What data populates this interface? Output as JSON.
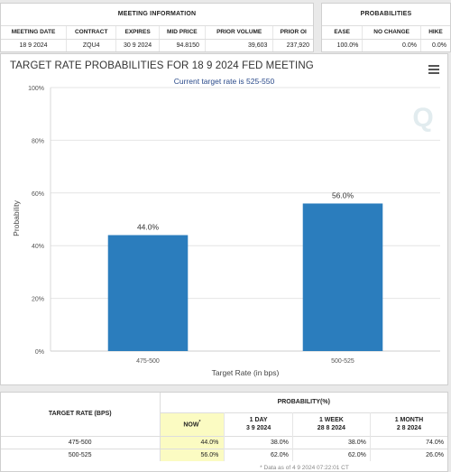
{
  "meeting_info": {
    "title": "MEETING INFORMATION",
    "headers": [
      "MEETING DATE",
      "CONTRACT",
      "EXPIRES",
      "MID PRICE",
      "PRIOR VOLUME",
      "PRIOR OI"
    ],
    "values": [
      "18 9 2024",
      "ZQU4",
      "30 9 2024",
      "94.8150",
      "39,603",
      "237,920"
    ]
  },
  "probabilities": {
    "title": "PROBABILITIES",
    "headers": [
      "EASE",
      "NO CHANGE",
      "HIKE"
    ],
    "values": [
      "100.0%",
      "0.0%",
      "0.0%"
    ]
  },
  "chart": {
    "title": "TARGET RATE PROBABILITIES FOR 18 9 2024 FED MEETING",
    "subtitle": "Current target rate is 525-550",
    "watermark": "Q",
    "bar_color": "#2b7dbd"
  },
  "chart_data": {
    "type": "bar",
    "categories": [
      "475-500",
      "500-525"
    ],
    "values": [
      44.0,
      56.0
    ],
    "data_labels": [
      "44.0%",
      "56.0%"
    ],
    "title": "TARGET RATE PROBABILITIES FOR 18 9 2024 FED MEETING",
    "subtitle": "Current target rate is 525-550",
    "xlabel": "Target Rate (in bps)",
    "ylabel": "Probability",
    "ylim": [
      0,
      100
    ],
    "yticks": [
      0,
      20,
      40,
      60,
      80,
      100
    ],
    "ytick_labels": [
      "0%",
      "20%",
      "40%",
      "60%",
      "80%",
      "100%"
    ],
    "grid": true,
    "legend": "none"
  },
  "bottom_table": {
    "target_rate_header": "TARGET RATE (BPS)",
    "probability_header": "PROBABILITY(%)",
    "columns": [
      {
        "label": "NOW",
        "marker": "*",
        "date": ""
      },
      {
        "label": "1 DAY",
        "marker": "",
        "date": "3 9 2024"
      },
      {
        "label": "1 WEEK",
        "marker": "",
        "date": "28 8 2024"
      },
      {
        "label": "1 MONTH",
        "marker": "",
        "date": "2 8 2024"
      }
    ],
    "rows": [
      {
        "rate": "475-500",
        "values": [
          "44.0%",
          "38.0%",
          "38.0%",
          "74.0%"
        ]
      },
      {
        "rate": "500-525",
        "values": [
          "56.0%",
          "62.0%",
          "62.0%",
          "26.0%"
        ]
      }
    ],
    "footnote": "* Data as of 4 9 2024 07:22:01 CT"
  }
}
